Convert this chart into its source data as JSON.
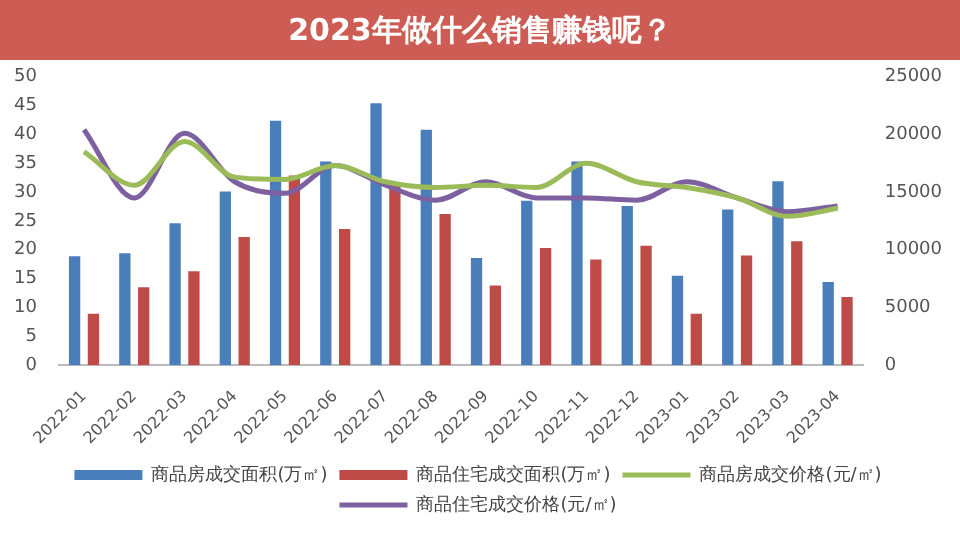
{
  "chart_data": {
    "type": "bar",
    "title": "2023年做什么销售赚钱呢？",
    "categories": [
      "2022-01",
      "2022-02",
      "2022-03",
      "2022-04",
      "2022-05",
      "2022-06",
      "2022-07",
      "2022-08",
      "2022-09",
      "2022-10",
      "2022-11",
      "2022-12",
      "2023-01",
      "2023-02",
      "2023-03",
      "2023-04"
    ],
    "series": [
      {
        "name": "商品房成交面积(万㎡)",
        "color": "#4a7ebb",
        "values": [
          18.9,
          19.4,
          24.6,
          30.1,
          42.4,
          35.3,
          45.4,
          40.8,
          18.6,
          28.5,
          35.3,
          27.6,
          15.5,
          27.0,
          31.9,
          14.4
        ]
      },
      {
        "name": "商品住宅成交面积(万㎡)",
        "color": "#be4b48",
        "values": [
          8.9,
          13.5,
          16.3,
          22.2,
          32.9,
          23.6,
          31.3,
          26.2,
          13.8,
          20.3,
          18.3,
          20.7,
          8.9,
          19.0,
          21.5,
          11.8
        ]
      },
      {
        "name": "商品房成交价格(元/㎡)",
        "type": "line",
        "axis": "y2",
        "color": "#9bbb59",
        "values": [
          18500,
          15600,
          19400,
          16300,
          16100,
          17300,
          15900,
          15400,
          15600,
          15400,
          17500,
          15900,
          15400,
          14500,
          12900,
          13600
        ]
      },
      {
        "name": "商品住宅成交价格(元/㎡)",
        "type": "line",
        "axis": "y2",
        "color": "#7d60a0",
        "values": [
          20400,
          14500,
          20100,
          15900,
          14900,
          17300,
          15600,
          14300,
          15900,
          14500,
          14500,
          14300,
          15900,
          14500,
          13300,
          13800
        ]
      }
    ],
    "ylim": [
      0,
      50
    ],
    "yticks": [
      0,
      5,
      10,
      15,
      20,
      25,
      30,
      35,
      40,
      45,
      50
    ],
    "y2lim": [
      0,
      25000
    ],
    "y2ticks": [
      0,
      5000,
      10000,
      15000,
      20000,
      25000
    ],
    "grid": false,
    "legend": "bottom",
    "marker": "none"
  }
}
